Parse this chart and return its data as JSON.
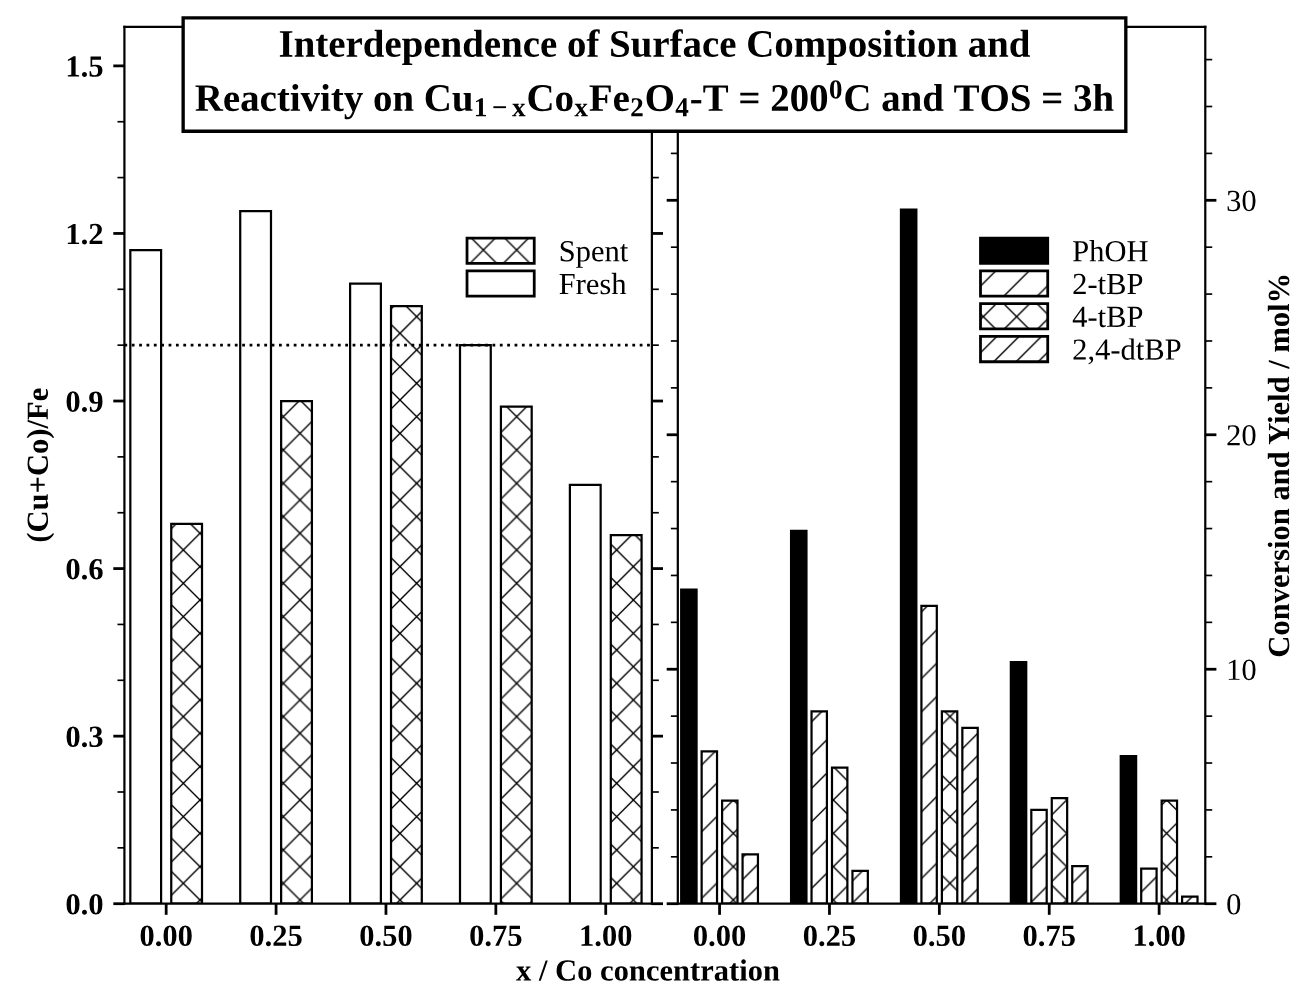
{
  "chart_data": [
    {
      "type": "bar",
      "title": "Interdependence of Surface Composition and\nReactivity on Cu$_{1−x}$Co$_{x}$Fe$_{2}$O$_{4}$-T = 200$^{0}$C and TOS = 3h",
      "xlabel": "x / Co concentration",
      "ylabel": "(Cu+Co)/Fe",
      "categories": [
        "0.00",
        "0.25",
        "0.50",
        "0.75",
        "1.00"
      ],
      "series": [
        {
          "name": "Fresh",
          "color": "#ffffff",
          "values": [
            1.17,
            1.24,
            1.11,
            1.0,
            0.75
          ]
        },
        {
          "name": "Spent",
          "color": "#ffffff",
          "values": [
            0.68,
            0.9,
            1.07,
            0.89,
            0.66
          ]
        }
      ],
      "ylim": [
        0,
        1.57
      ],
      "yticks": [
        {
          "value": 0,
          "label": "0.0"
        },
        0.3,
        0.6,
        0.9,
        1.2,
        1.5
      ],
      "ref_lines": [
        {
          "axis": "y",
          "value": 1.0,
          "label": null,
          "line_style": "dotted"
        }
      ],
      "legend": "top right",
      "grid": false
    },
    {
      "type": "bar",
      "ylabel": "Conversion and Yield / mol%",
      "categories": [
        "0.00",
        "0.25",
        "0.50",
        "0.75",
        "1.00"
      ],
      "series": [
        {
          "name": "PhOH",
          "color": "#000000",
          "values": [
            13.4,
            15.9,
            29.6,
            10.3,
            6.3
          ]
        },
        {
          "name": "2-tBP",
          "color": "#ffffff",
          "values": [
            6.5,
            8.2,
            12.7,
            4.0,
            1.5
          ]
        },
        {
          "name": "4-tBP",
          "color": "#ffffff",
          "values": [
            4.4,
            5.8,
            8.2,
            4.5,
            4.4
          ]
        },
        {
          "name": "2,4-dtBP",
          "color": "#ffffff",
          "values": [
            2.1,
            1.4,
            7.5,
            1.6,
            0.3
          ]
        }
      ],
      "ylim": [
        0,
        37.4
      ],
      "yticks": [
        0,
        10,
        20,
        30
      ],
      "legend": "top right",
      "grid": false
    }
  ]
}
